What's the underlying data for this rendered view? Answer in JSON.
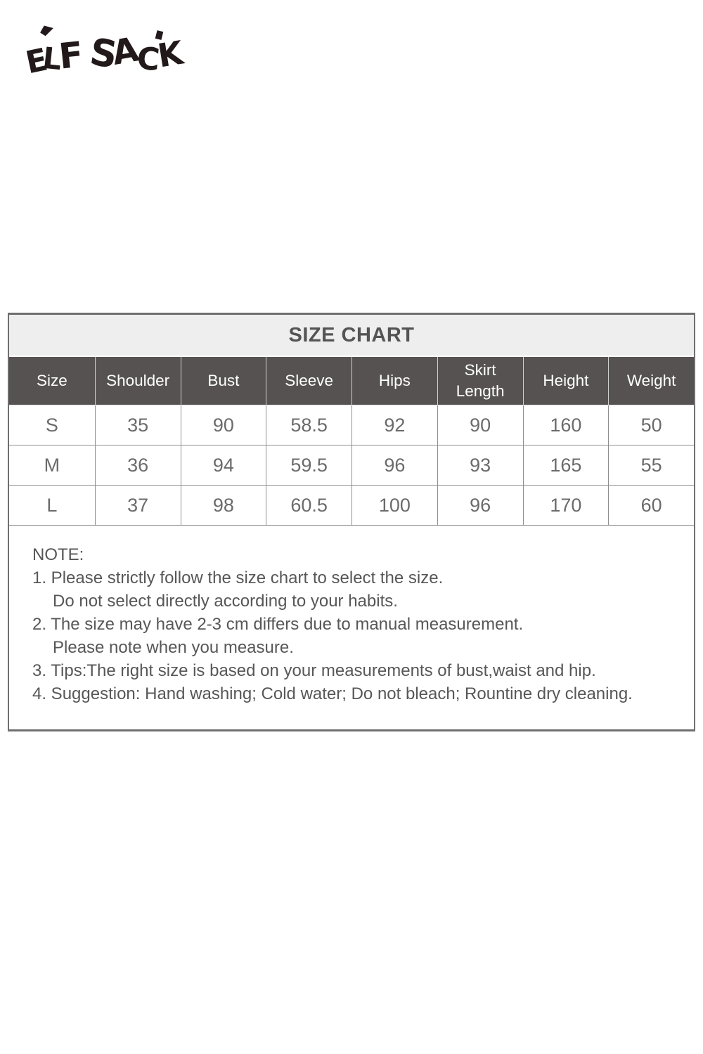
{
  "brand": {
    "logo_text": "ELF SACK",
    "letters": [
      "E",
      "L",
      "F",
      "S",
      "A",
      "C",
      "K"
    ]
  },
  "chart_data": {
    "type": "table",
    "title": "SIZE CHART",
    "columns": [
      "Size",
      "Shoulder",
      "Bust",
      "Sleeve",
      "Hips",
      "Skirt Length",
      "Height",
      "Weight"
    ],
    "rows": [
      [
        "S",
        "35",
        "90",
        "58.5",
        "92",
        "90",
        "160",
        "50"
      ],
      [
        "M",
        "36",
        "94",
        "59.5",
        "96",
        "93",
        "165",
        "55"
      ],
      [
        "L",
        "37",
        "98",
        "60.5",
        "100",
        "96",
        "170",
        "60"
      ]
    ]
  },
  "note": {
    "heading": "NOTE:",
    "lines": [
      "1. Please strictly follow the size chart to select the size.",
      "Do not select directly according to your habits.",
      "2. The size may have 2-3 cm differs due to manual measurement.",
      "Please note when you measure.",
      "3. Tips:The right size is based on your measurements of bust,waist and hip.",
      "4. Suggestion: Hand washing; Cold water; Do not bleach; Rountine dry cleaning."
    ]
  },
  "colors": {
    "title_band_bg": "#eeeeee",
    "title_text": "#545454",
    "header_bg": "#575252",
    "header_text": "#ffffff",
    "data_text": "#6b6b6b",
    "note_text": "#575757",
    "border_outer": "#6f6f6f",
    "border_inner": "#8f8f8f",
    "logo_color": "#221a1a"
  }
}
